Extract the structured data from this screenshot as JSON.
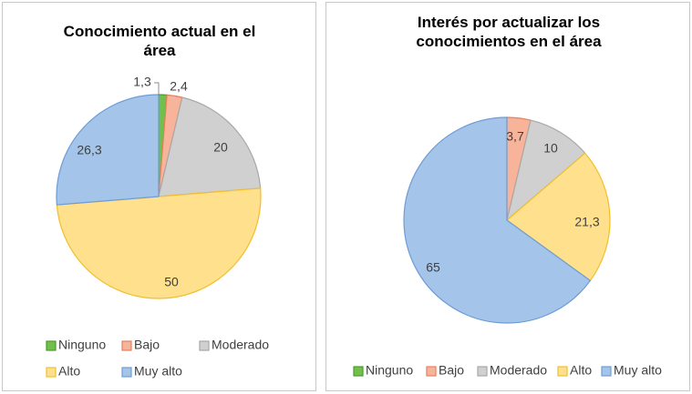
{
  "colors": {
    "Ninguno": {
      "fill": "#70c04a",
      "stroke": "#4e9a2e"
    },
    "Bajo": {
      "fill": "#f8b49a",
      "stroke": "#e8805e"
    },
    "Moderado": {
      "fill": "#d0d0d0",
      "stroke": "#a8a8a8"
    },
    "Alto": {
      "fill": "#ffe08c",
      "stroke": "#f2be2c"
    },
    "Muy alto": {
      "fill": "#a4c4ea",
      "stroke": "#6e9cd6"
    }
  },
  "chart_data": [
    {
      "type": "pie",
      "title_lines": [
        "Conocimiento actual en el",
        "área"
      ],
      "legend_position": "bottom",
      "slices": [
        {
          "name": "Ninguno",
          "value": 1.3,
          "label": "1,3"
        },
        {
          "name": "Bajo",
          "value": 2.4,
          "label": "2,4"
        },
        {
          "name": "Moderado",
          "value": 20,
          "label": "20"
        },
        {
          "name": "Alto",
          "value": 50,
          "label": "50"
        },
        {
          "name": "Muy alto",
          "value": 26.3,
          "label": "26,3"
        }
      ]
    },
    {
      "type": "pie",
      "title_lines": [
        "Interés por actualizar los",
        "conocimientos en el área"
      ],
      "legend_position": "bottom",
      "slices": [
        {
          "name": "Ninguno",
          "value": 0,
          "label": ""
        },
        {
          "name": "Bajo",
          "value": 3.7,
          "label": "3,7"
        },
        {
          "name": "Moderado",
          "value": 10,
          "label": "10"
        },
        {
          "name": "Alto",
          "value": 21.3,
          "label": "21,3"
        },
        {
          "name": "Muy alto",
          "value": 65,
          "label": "65"
        }
      ]
    }
  ]
}
